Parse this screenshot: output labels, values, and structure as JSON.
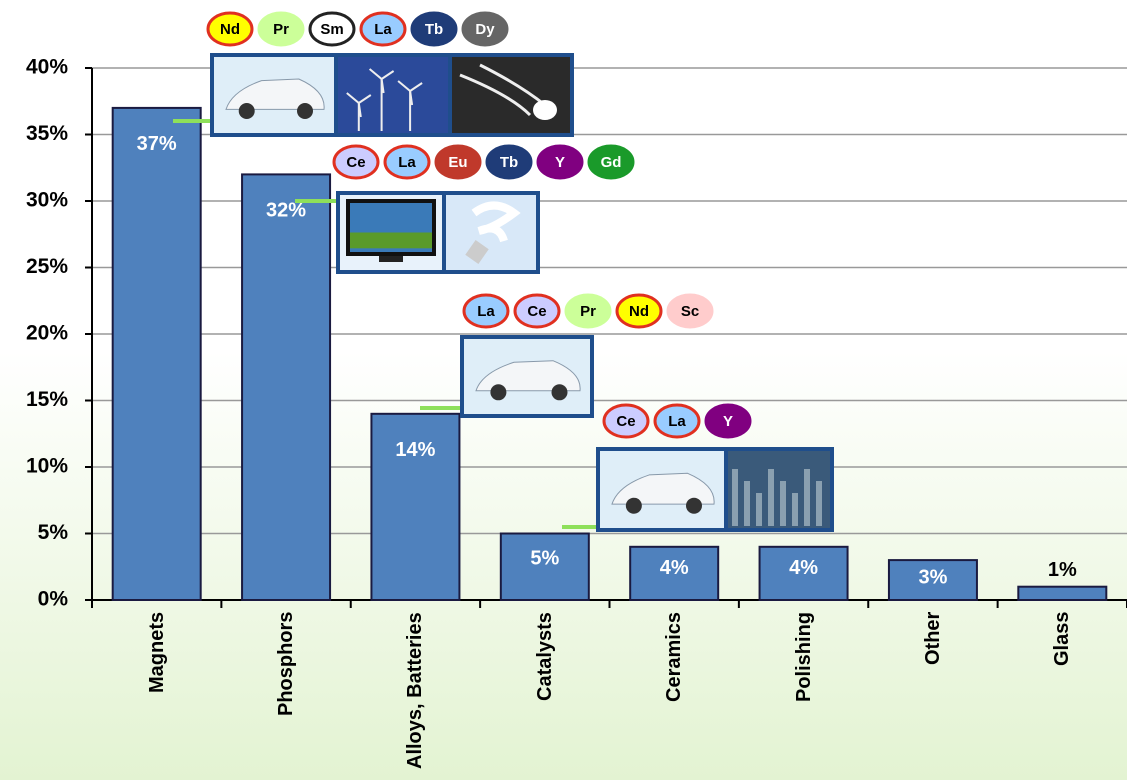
{
  "chart_data": {
    "type": "bar",
    "categories": [
      "Magnets",
      "Phosphors",
      "Alloys, Batteries",
      "Catalysts",
      "Ceramics",
      "Polishing",
      "Other",
      "Glass"
    ],
    "values": [
      37,
      32,
      14,
      5,
      4,
      4,
      3,
      1
    ],
    "value_labels": [
      "37%",
      "32%",
      "14%",
      "5%",
      "4%",
      "4%",
      "3%",
      "1%"
    ],
    "color": "#4f81bd",
    "ylim": [
      0,
      40
    ],
    "yticks": [
      {
        "value": 0,
        "label": "0%"
      },
      {
        "value": 5,
        "label": "5%"
      },
      {
        "value": 10,
        "label": "10%"
      },
      {
        "value": 15,
        "label": "15%"
      },
      {
        "value": 20,
        "label": "20%"
      },
      {
        "value": 25,
        "label": "25%"
      },
      {
        "value": 30,
        "label": "30%"
      },
      {
        "value": 35,
        "label": "35%"
      },
      {
        "value": 40,
        "label": "40%"
      }
    ],
    "grid": true,
    "annotations": [
      {
        "elements": [
          {
            "text": "Nd",
            "fill": "#ffff00",
            "stroke": "#e03020"
          },
          {
            "text": "Pr",
            "fill": "#ccff99",
            "stroke": "#ccff99"
          },
          {
            "text": "Sm",
            "fill": "#ffffff",
            "stroke": "#222222"
          },
          {
            "text": "La",
            "fill": "#99ccff",
            "stroke": "#e03020"
          },
          {
            "text": "Tb",
            "fill": "#1f3c78",
            "stroke": "#1f3c78"
          },
          {
            "text": "Dy",
            "fill": "#666666",
            "stroke": "#666666"
          }
        ]
      },
      {
        "elements": [
          {
            "text": "Ce",
            "fill": "#ccccff",
            "stroke": "#e03020"
          },
          {
            "text": "La",
            "fill": "#99ccff",
            "stroke": "#e03020"
          },
          {
            "text": "Eu",
            "fill": "#c0392b",
            "stroke": "#c0392b"
          },
          {
            "text": "Tb",
            "fill": "#1f3c78",
            "stroke": "#1f3c78"
          },
          {
            "text": "Y",
            "fill": "#800080",
            "stroke": "#800080"
          },
          {
            "text": "Gd",
            "fill": "#1a9a2a",
            "stroke": "#1a9a2a"
          }
        ]
      },
      {
        "elements": [
          {
            "text": "La",
            "fill": "#99ccff",
            "stroke": "#e03020"
          },
          {
            "text": "Ce",
            "fill": "#ccccff",
            "stroke": "#e03020"
          },
          {
            "text": "Pr",
            "fill": "#ccff99",
            "stroke": "#ccff99"
          },
          {
            "text": "Nd",
            "fill": "#ffff00",
            "stroke": "#e03020"
          },
          {
            "text": "Sc",
            "fill": "#ffcccc",
            "stroke": "#ffcccc"
          }
        ]
      },
      {
        "elements": [
          {
            "text": "Ce",
            "fill": "#ccccff",
            "stroke": "#e03020"
          },
          {
            "text": "La",
            "fill": "#99ccff",
            "stroke": "#e03020"
          },
          {
            "text": "Y",
            "fill": "#800080",
            "stroke": "#800080"
          }
        ]
      }
    ]
  }
}
